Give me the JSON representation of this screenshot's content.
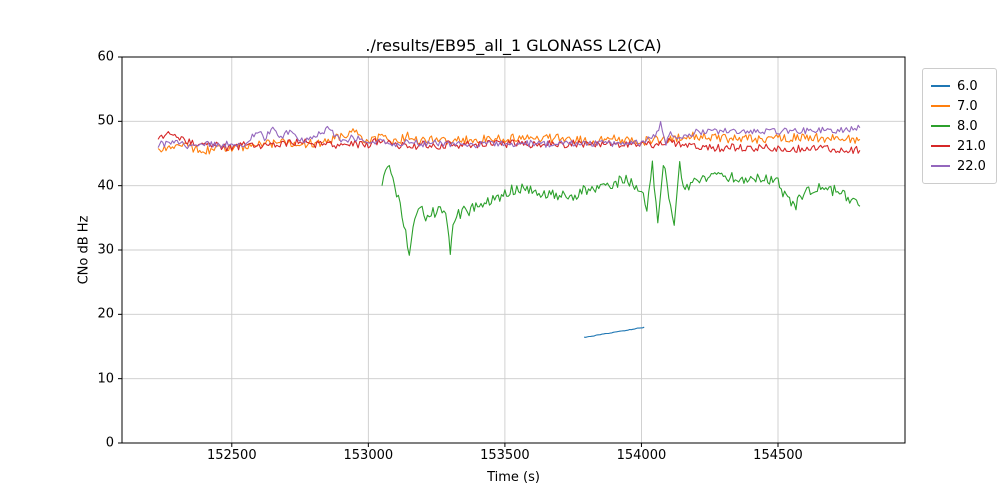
{
  "chart_data": {
    "type": "line",
    "title": "./results/EB95_all_1 GLONASS L2(CA)",
    "xlabel": "Time (s)",
    "ylabel": "CNo dB Hz",
    "xlim": [
      152098,
      154965
    ],
    "ylim": [
      0,
      60
    ],
    "xticks": [
      152500,
      153000,
      153500,
      154000,
      154500
    ],
    "yticks": [
      0,
      10,
      20,
      30,
      40,
      50,
      60
    ],
    "grid": true,
    "legend_position": "outside-right",
    "series": [
      {
        "name": "6.0",
        "color": "#1f77b4",
        "noise": 0.05,
        "points": [
          [
            153790,
            16.4
          ],
          [
            154010,
            18.0
          ]
        ]
      },
      {
        "name": "7.0",
        "color": "#ff7f0e",
        "noise": 0.7,
        "points": [
          [
            152230,
            45.3
          ],
          [
            152300,
            46.3
          ],
          [
            152400,
            45.6
          ],
          [
            152500,
            45.8
          ],
          [
            152600,
            46.3
          ],
          [
            152700,
            46.8
          ],
          [
            152800,
            46.5
          ],
          [
            152900,
            47.6
          ],
          [
            152950,
            48.3
          ],
          [
            153000,
            46.9
          ],
          [
            153050,
            47.5
          ],
          [
            153100,
            46.7
          ],
          [
            153150,
            47.8
          ],
          [
            153200,
            46.9
          ],
          [
            153250,
            47.3
          ],
          [
            153300,
            47.0
          ],
          [
            153400,
            47.2
          ],
          [
            153500,
            47.4
          ],
          [
            153600,
            47.2
          ],
          [
            153700,
            47.4
          ],
          [
            153800,
            47.0
          ],
          [
            153900,
            47.2
          ],
          [
            154000,
            46.9
          ],
          [
            154100,
            47.3
          ],
          [
            154200,
            47.8
          ],
          [
            154300,
            47.4
          ],
          [
            154400,
            47.2
          ],
          [
            154500,
            47.3
          ],
          [
            154600,
            47.5
          ],
          [
            154700,
            47.3
          ],
          [
            154800,
            47.2
          ]
        ]
      },
      {
        "name": "8.0",
        "color": "#2ca02c",
        "noise": 0.9,
        "points": [
          [
            153050,
            40.5
          ],
          [
            153070,
            43.8
          ],
          [
            153090,
            41.0
          ],
          [
            153110,
            38.0
          ],
          [
            153130,
            34.0
          ],
          [
            153150,
            29.5
          ],
          [
            153170,
            34.5
          ],
          [
            153190,
            36.5
          ],
          [
            153210,
            35.0
          ],
          [
            153230,
            36.0
          ],
          [
            153250,
            35.5
          ],
          [
            153270,
            36.5
          ],
          [
            153290,
            34.5
          ],
          [
            153300,
            28.6
          ],
          [
            153310,
            34.0
          ],
          [
            153330,
            35.5
          ],
          [
            153350,
            36.0
          ],
          [
            153400,
            36.5
          ],
          [
            153450,
            37.5
          ],
          [
            153500,
            39.0
          ],
          [
            153550,
            39.5
          ],
          [
            153600,
            39.3
          ],
          [
            153650,
            38.8
          ],
          [
            153700,
            38.5
          ],
          [
            153750,
            38.0
          ],
          [
            153800,
            39.5
          ],
          [
            153850,
            40.0
          ],
          [
            153900,
            40.5
          ],
          [
            153950,
            41.0
          ],
          [
            154000,
            39.5
          ],
          [
            154020,
            36.0
          ],
          [
            154040,
            43.5
          ],
          [
            154060,
            34.0
          ],
          [
            154080,
            44.0
          ],
          [
            154100,
            38.0
          ],
          [
            154120,
            33.5
          ],
          [
            154140,
            43.0
          ],
          [
            154160,
            39.5
          ],
          [
            154180,
            40.5
          ],
          [
            154200,
            41.0
          ],
          [
            154250,
            41.5
          ],
          [
            154300,
            41.3
          ],
          [
            154350,
            41.5
          ],
          [
            154400,
            41.0
          ],
          [
            154450,
            41.2
          ],
          [
            154500,
            40.8
          ],
          [
            154530,
            38.0
          ],
          [
            154560,
            36.8
          ],
          [
            154600,
            39.0
          ],
          [
            154650,
            39.5
          ],
          [
            154700,
            39.3
          ],
          [
            154750,
            38.5
          ],
          [
            154800,
            36.8
          ]
        ]
      },
      {
        "name": "21.0",
        "color": "#d62728",
        "noise": 0.6,
        "points": [
          [
            152230,
            47.3
          ],
          [
            152280,
            48.0
          ],
          [
            152350,
            46.8
          ],
          [
            152450,
            46.3
          ],
          [
            152500,
            45.8
          ],
          [
            152550,
            46.5
          ],
          [
            152600,
            46.2
          ],
          [
            152700,
            46.5
          ],
          [
            152750,
            47.0
          ],
          [
            152800,
            46.3
          ],
          [
            152850,
            46.8
          ],
          [
            152900,
            46.0
          ],
          [
            152950,
            46.5
          ],
          [
            153000,
            46.2
          ],
          [
            153050,
            47.3
          ],
          [
            153100,
            46.3
          ],
          [
            153150,
            46.0
          ],
          [
            153200,
            46.4
          ],
          [
            153250,
            46.2
          ],
          [
            153300,
            46.5
          ],
          [
            153350,
            46.3
          ],
          [
            153400,
            46.4
          ],
          [
            153450,
            46.6
          ],
          [
            153500,
            46.4
          ],
          [
            153550,
            46.6
          ],
          [
            153600,
            46.3
          ],
          [
            153650,
            46.6
          ],
          [
            153700,
            46.4
          ],
          [
            153750,
            46.6
          ],
          [
            153800,
            46.5
          ],
          [
            153850,
            46.3
          ],
          [
            153900,
            46.6
          ],
          [
            153950,
            46.4
          ],
          [
            154000,
            46.5
          ],
          [
            154050,
            46.3
          ],
          [
            154100,
            46.8
          ],
          [
            154150,
            46.4
          ],
          [
            154200,
            46.2
          ],
          [
            154250,
            46.0
          ],
          [
            154300,
            45.8
          ],
          [
            154350,
            46.0
          ],
          [
            154400,
            45.7
          ],
          [
            154450,
            45.9
          ],
          [
            154500,
            45.7
          ],
          [
            154550,
            45.8
          ],
          [
            154600,
            45.6
          ],
          [
            154650,
            45.9
          ],
          [
            154700,
            45.7
          ],
          [
            154750,
            45.6
          ],
          [
            154800,
            45.5
          ]
        ]
      },
      {
        "name": "22.0",
        "color": "#9467bd",
        "noise": 0.5,
        "points": [
          [
            152230,
            46.4
          ],
          [
            152300,
            46.8
          ],
          [
            152350,
            46.0
          ],
          [
            152400,
            46.5
          ],
          [
            152450,
            46.2
          ],
          [
            152500,
            46.6
          ],
          [
            152550,
            46.3
          ],
          [
            152600,
            48.8
          ],
          [
            152620,
            47.0
          ],
          [
            152650,
            49.3
          ],
          [
            152680,
            47.5
          ],
          [
            152700,
            48.5
          ],
          [
            152750,
            47.0
          ],
          [
            152800,
            47.5
          ],
          [
            152850,
            48.8
          ],
          [
            152900,
            47.0
          ],
          [
            152950,
            47.5
          ],
          [
            153000,
            46.8
          ],
          [
            153050,
            47.0
          ],
          [
            153100,
            46.5
          ],
          [
            153150,
            46.8
          ],
          [
            153200,
            46.5
          ],
          [
            153250,
            46.7
          ],
          [
            153300,
            46.4
          ],
          [
            153350,
            46.6
          ],
          [
            153400,
            46.3
          ],
          [
            153450,
            46.6
          ],
          [
            153500,
            46.4
          ],
          [
            153550,
            46.5
          ],
          [
            153600,
            46.6
          ],
          [
            153650,
            46.4
          ],
          [
            153700,
            46.6
          ],
          [
            153750,
            46.5
          ],
          [
            153800,
            46.4
          ],
          [
            153850,
            46.6
          ],
          [
            153900,
            46.5
          ],
          [
            153950,
            46.7
          ],
          [
            154000,
            46.6
          ],
          [
            154050,
            48.0
          ],
          [
            154070,
            49.5
          ],
          [
            154090,
            46.5
          ],
          [
            154100,
            48.0
          ],
          [
            154150,
            47.5
          ],
          [
            154200,
            48.3
          ],
          [
            154250,
            48.5
          ],
          [
            154300,
            48.4
          ],
          [
            154350,
            48.6
          ],
          [
            154400,
            48.3
          ],
          [
            154450,
            48.5
          ],
          [
            154500,
            48.4
          ],
          [
            154550,
            48.6
          ],
          [
            154600,
            48.5
          ],
          [
            154650,
            48.7
          ],
          [
            154700,
            48.5
          ],
          [
            154750,
            48.8
          ],
          [
            154800,
            49.0
          ]
        ]
      }
    ]
  }
}
